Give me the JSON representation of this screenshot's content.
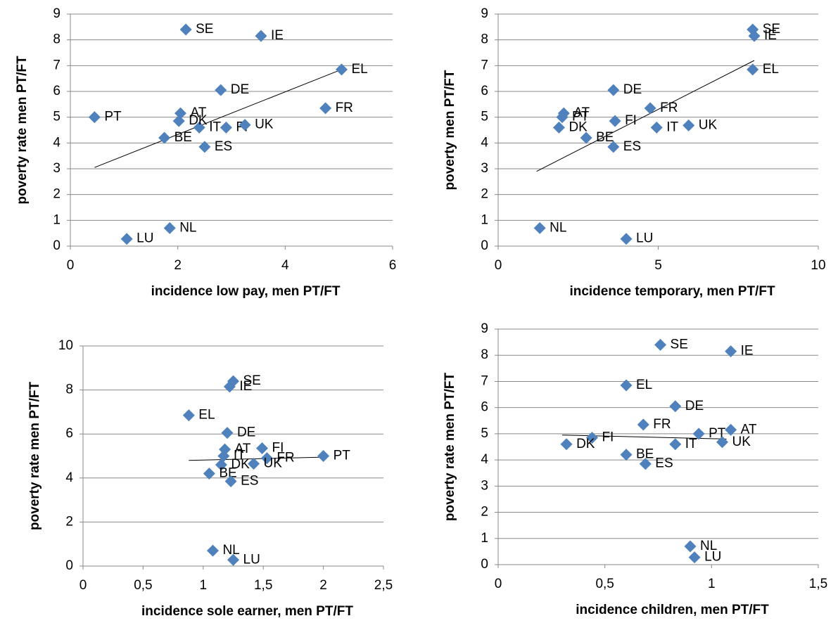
{
  "chart_data": [
    {
      "type": "scatter",
      "xlabel": "incidence low pay, men PT/FT",
      "ylabel": "poverty rate men PT/FT",
      "labels": [
        "SE",
        "IE",
        "EL",
        "DE",
        "AT",
        "PT",
        "FR",
        "IT",
        "FI",
        "DK",
        "BE",
        "UK",
        "ES",
        "NL",
        "LU"
      ],
      "x": [
        2.15,
        3.55,
        5.05,
        2.8,
        2.05,
        0.45,
        4.75,
        2.4,
        2.9,
        2.02,
        1.75,
        3.25,
        2.5,
        1.85,
        1.05
      ],
      "values": [
        8.4,
        8.15,
        6.85,
        6.05,
        5.15,
        5.0,
        5.35,
        4.6,
        4.6,
        4.85,
        4.2,
        4.7,
        3.85,
        0.7,
        0.28
      ],
      "color": "#4f81bd",
      "trendline": {
        "x": [
          0.45,
          5.05
        ],
        "values": [
          3.05,
          6.85
        ]
      },
      "xlim": [
        0,
        6
      ],
      "xticks": [
        0,
        2,
        4,
        6
      ],
      "ylim": [
        0,
        9
      ],
      "yticks": [
        0,
        1,
        2,
        3,
        4,
        5,
        6,
        7,
        8,
        9
      ],
      "grid": true
    },
    {
      "type": "scatter",
      "xlabel": "incidence temporary, men PT/FT",
      "ylabel": "poverty men PT/FT",
      "labels": [
        "SE",
        "IE",
        "EL",
        "DE",
        "AT",
        "PT",
        "FR",
        "IT",
        "FI",
        "DK",
        "BE",
        "UK",
        "ES",
        "NL",
        "LU"
      ],
      "x": [
        7.95,
        8.0,
        7.95,
        3.6,
        2.05,
        2.0,
        4.75,
        4.95,
        3.65,
        1.9,
        2.75,
        5.95,
        3.6,
        1.3,
        4.0
      ],
      "values": [
        8.4,
        8.15,
        6.85,
        6.05,
        5.15,
        5.0,
        5.35,
        4.6,
        4.85,
        4.6,
        4.2,
        4.68,
        3.85,
        0.7,
        0.28
      ],
      "color": "#4f81bd",
      "trendline": {
        "x": [
          1.2,
          8.0
        ],
        "values": [
          2.9,
          7.2
        ]
      },
      "xlim": [
        0,
        10
      ],
      "xticks": [
        0,
        5,
        10
      ],
      "ylim": [
        0,
        9
      ],
      "yticks": [
        0,
        1,
        2,
        3,
        4,
        5,
        6,
        7,
        8,
        9
      ],
      "grid": true
    },
    {
      "type": "scatter",
      "xlabel": "incidence sole earner, men PT/FT",
      "ylabel": "poverty rate men PT/FT",
      "labels": [
        "SE",
        "IE",
        "EL",
        "DE",
        "AT",
        "IT",
        "FI",
        "FR",
        "PT",
        "DK",
        "UK",
        "BE",
        "ES",
        "NL",
        "LU"
      ],
      "x": [
        1.25,
        1.22,
        0.88,
        1.2,
        1.18,
        1.17,
        1.49,
        1.53,
        2.0,
        1.15,
        1.42,
        1.05,
        1.23,
        1.08,
        1.25
      ],
      "values": [
        8.4,
        8.15,
        6.85,
        6.05,
        5.3,
        5.0,
        5.35,
        4.9,
        5.0,
        4.6,
        4.65,
        4.2,
        3.85,
        0.7,
        0.28
      ],
      "color": "#4f81bd",
      "trendline": {
        "x": [
          0.88,
          2.0
        ],
        "values": [
          4.8,
          4.95
        ]
      },
      "xlim": [
        0,
        2.5
      ],
      "xticks": [
        0,
        {
          "value": 0.5,
          "label": "0,5"
        },
        1,
        {
          "value": 1.5,
          "label": "1,5"
        },
        2,
        {
          "value": 2.5,
          "label": "2,5"
        }
      ],
      "ylim": [
        0,
        10
      ],
      "yticks": [
        0,
        2,
        4,
        6,
        8,
        10
      ],
      "grid": true
    },
    {
      "type": "scatter",
      "xlabel": "incidence children, men PT/FT",
      "ylabel": "poverty rate men PT/FT",
      "labels": [
        "SE",
        "IE",
        "EL",
        "DE",
        "FR",
        "AT",
        "PT",
        "FI",
        "IT",
        "DK",
        "UK",
        "BE",
        "ES",
        "NL",
        "LU"
      ],
      "x": [
        0.76,
        1.09,
        0.6,
        0.83,
        0.68,
        1.09,
        0.94,
        0.44,
        0.83,
        0.32,
        1.05,
        0.6,
        0.69,
        0.9,
        0.92
      ],
      "values": [
        8.4,
        8.15,
        6.85,
        6.05,
        5.35,
        5.15,
        5.0,
        4.85,
        4.6,
        4.6,
        4.68,
        4.2,
        3.85,
        0.7,
        0.28
      ],
      "color": "#4f81bd",
      "trendline": {
        "x": [
          0.3,
          1.07
        ],
        "values": [
          4.95,
          4.8
        ]
      },
      "xlim": [
        0,
        1.5
      ],
      "xticks": [
        0,
        {
          "value": 0.5,
          "label": "0,5"
        },
        1,
        {
          "value": 1.5,
          "label": "1,5"
        }
      ],
      "ylim": [
        0,
        9
      ],
      "yticks": [
        0,
        1,
        2,
        3,
        4,
        5,
        6,
        7,
        8,
        9
      ],
      "grid": true
    }
  ]
}
